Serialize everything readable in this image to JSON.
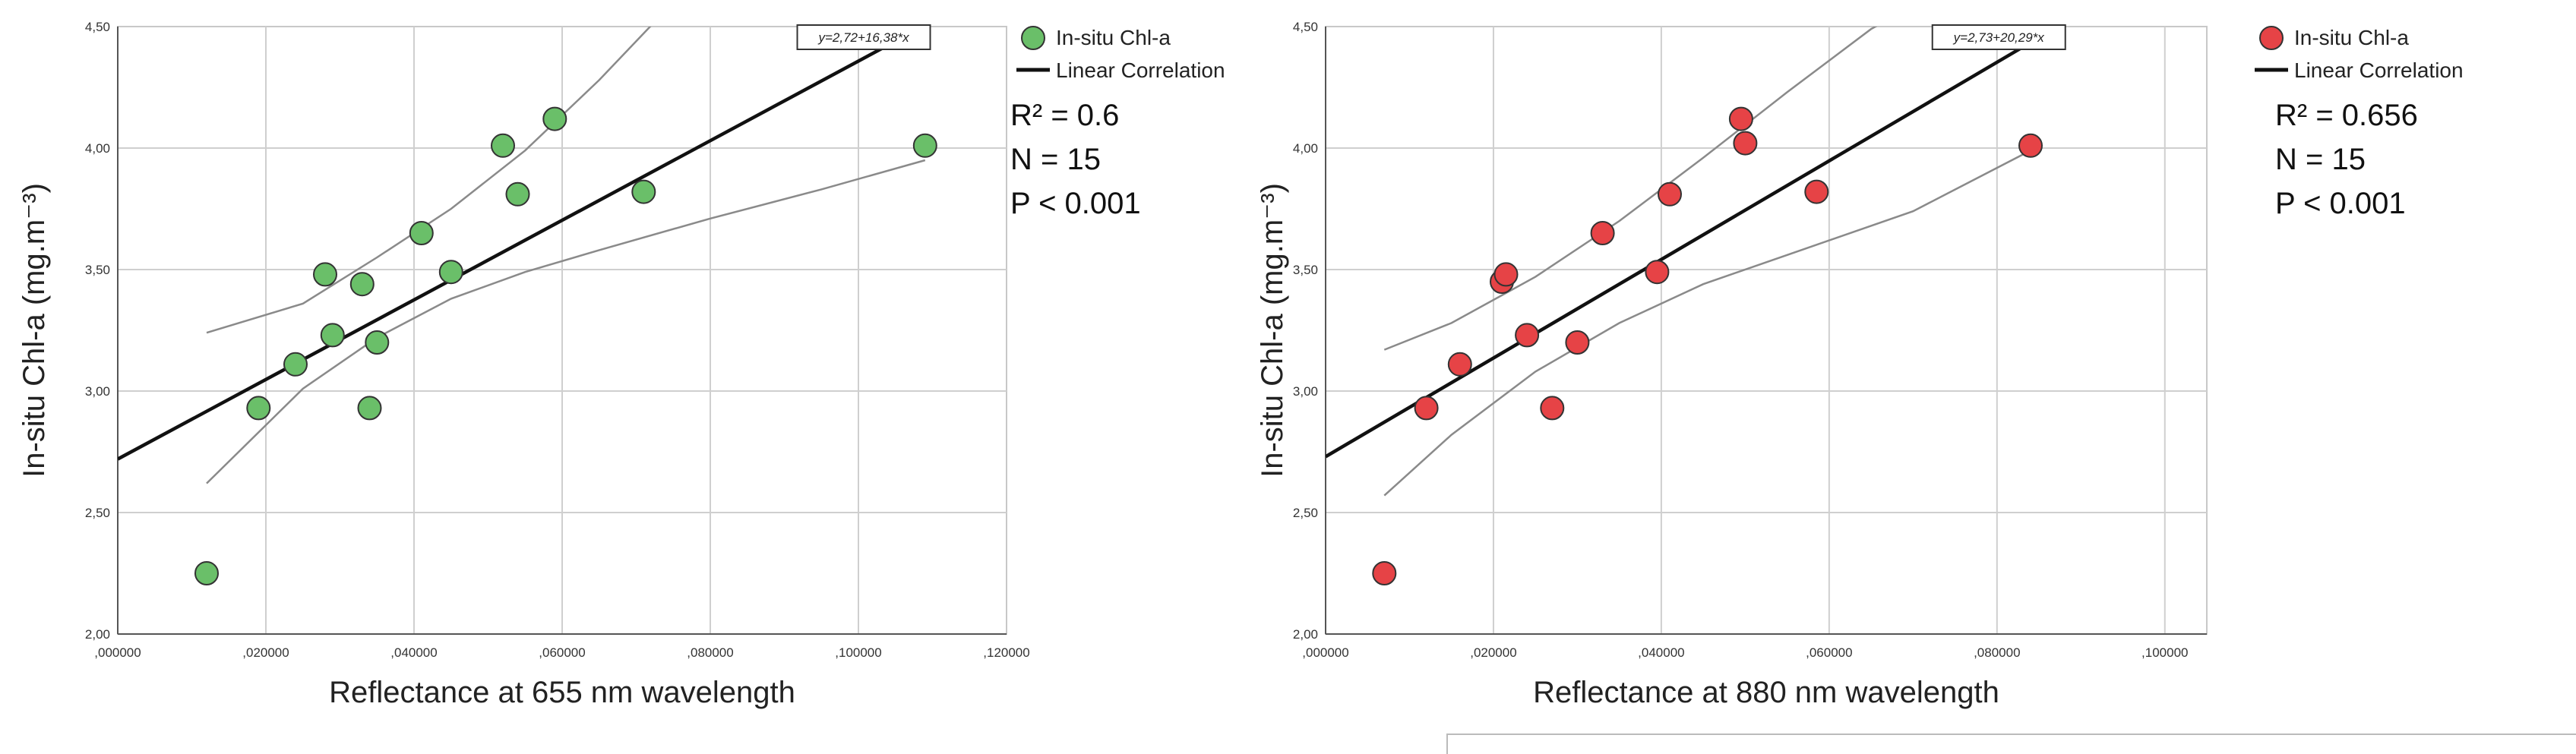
{
  "chart_data": [
    {
      "type": "scatter",
      "xlabel": "Reflectance at 655 nm wavelength",
      "ylabel": "In-situ Chl-a (mg.m⁻³)",
      "xlim": [
        0,
        0.12
      ],
      "ylim": [
        2.0,
        4.5
      ],
      "x_ticks": [
        0,
        0.02,
        0.04,
        0.06,
        0.08,
        0.1,
        0.12
      ],
      "x_tick_labels": [
        ",000000",
        ",020000",
        ",040000",
        ",060000",
        ",080000",
        ",100000",
        ",120000"
      ],
      "y_ticks": [
        2.0,
        2.5,
        3.0,
        3.5,
        4.0,
        4.5
      ],
      "y_tick_labels": [
        "2,00",
        "2,50",
        "3,00",
        "3,50",
        "4,00",
        "4,50"
      ],
      "grid": true,
      "point_color": "#6abf69",
      "equation": "y=2,72+16,38*x",
      "fit": {
        "intercept": 2.72,
        "slope": 16.38
      },
      "series": [
        {
          "name": "In-situ Chl-a",
          "x": [
            0.012,
            0.019,
            0.024,
            0.028,
            0.029,
            0.033,
            0.034,
            0.035,
            0.041,
            0.045,
            0.052,
            0.054,
            0.059,
            0.071,
            0.109
          ],
          "y": [
            2.25,
            2.93,
            3.11,
            3.48,
            3.23,
            3.44,
            2.93,
            3.2,
            3.65,
            3.49,
            4.01,
            3.81,
            4.12,
            3.82,
            4.01
          ]
        }
      ],
      "ci_upper": {
        "x": [
          0.012,
          0.025,
          0.035,
          0.045,
          0.055,
          0.065,
          0.075
        ],
        "y": [
          3.24,
          3.36,
          3.55,
          3.75,
          3.99,
          4.28,
          4.6
        ]
      },
      "ci_lower": {
        "x": [
          0.012,
          0.025,
          0.035,
          0.045,
          0.055,
          0.065,
          0.08,
          0.095,
          0.109
        ],
        "y": [
          2.62,
          3.01,
          3.22,
          3.38,
          3.49,
          3.58,
          3.71,
          3.83,
          3.95
        ]
      },
      "legend": {
        "points_label": "In-situ Chl-a",
        "line_label": "Linear Correlation",
        "placement": "right"
      },
      "stats": {
        "r2": "R² = 0.6",
        "n": "N = 15",
        "p": "P < 0.001"
      }
    },
    {
      "type": "scatter",
      "xlabel": "Reflectance at 880 nm wavelength",
      "ylabel": "In-situ Chl-a (mg.m⁻³)",
      "xlim": [
        0,
        0.105
      ],
      "ylim": [
        2.0,
        4.5
      ],
      "x_ticks": [
        0,
        0.02,
        0.04,
        0.06,
        0.08,
        0.1
      ],
      "x_tick_labels": [
        ",000000",
        ",020000",
        ",040000",
        ",060000",
        ",080000",
        ",100000"
      ],
      "y_ticks": [
        2.0,
        2.5,
        3.0,
        3.5,
        4.0,
        4.5
      ],
      "y_tick_labels": [
        "2,00",
        "2,50",
        "3,00",
        "3,50",
        "4,00",
        "4,50"
      ],
      "grid": true,
      "point_color": "#e64346",
      "equation": "y=2,73+20,29*x",
      "fit": {
        "intercept": 2.73,
        "slope": 20.29
      },
      "series": [
        {
          "name": "In-situ Chl-a",
          "x": [
            0.007,
            0.012,
            0.016,
            0.021,
            0.0215,
            0.024,
            0.027,
            0.03,
            0.033,
            0.0395,
            0.041,
            0.0495,
            0.05,
            0.0585,
            0.084
          ],
          "y": [
            2.25,
            2.93,
            3.11,
            3.45,
            3.48,
            3.23,
            2.93,
            3.2,
            3.65,
            3.49,
            3.81,
            4.12,
            4.02,
            3.82,
            4.01
          ]
        }
      ],
      "ci_upper": {
        "x": [
          0.007,
          0.015,
          0.025,
          0.035,
          0.045,
          0.055,
          0.065,
          0.075
        ],
        "y": [
          3.17,
          3.28,
          3.47,
          3.7,
          3.96,
          4.23,
          4.49,
          4.68
        ]
      },
      "ci_lower": {
        "x": [
          0.007,
          0.015,
          0.025,
          0.035,
          0.045,
          0.055,
          0.07,
          0.084
        ],
        "y": [
          2.57,
          2.82,
          3.08,
          3.28,
          3.44,
          3.56,
          3.74,
          3.99
        ]
      },
      "legend": {
        "points_label": "In-situ Chl-a",
        "line_label": "Linear Correlation",
        "placement": "right"
      },
      "stats": {
        "r2": "R² = 0.656",
        "n": "N = 15",
        "p": "P < 0.001"
      }
    }
  ]
}
